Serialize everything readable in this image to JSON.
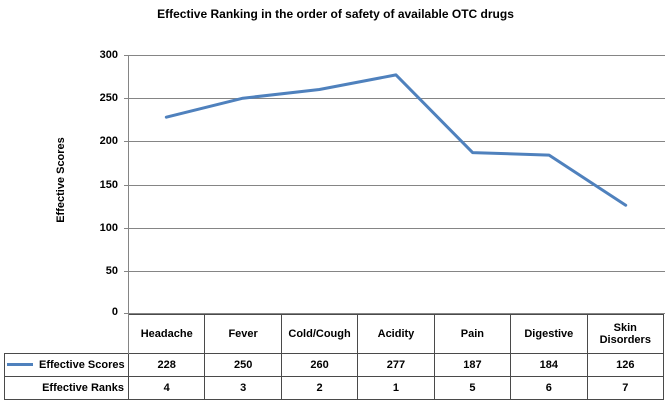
{
  "chart": {
    "title": "Effective Ranking in the order of safety of available OTC drugs"
  },
  "y_axis": {
    "label": "Effective Scores",
    "ticks": [
      "300",
      "250",
      "200",
      "150",
      "100",
      "50",
      "0"
    ]
  },
  "chart_data": {
    "type": "line",
    "title": "Effective Ranking in the order of safety of available OTC drugs",
    "categories": [
      "Headache",
      "Fever",
      "Cold/Cough",
      "Acidity",
      "Pain",
      "Digestive",
      "Skin Disorders"
    ],
    "series": [
      {
        "name": "Effective Scores",
        "values": [
          228,
          250,
          260,
          277,
          187,
          184,
          126
        ],
        "color": "#4F81BD",
        "drawn_as_line": true
      },
      {
        "name": "Effective Ranks",
        "values": [
          4,
          3,
          2,
          1,
          5,
          6,
          7
        ],
        "drawn_as_line": false
      }
    ],
    "ylabel": "Effective Scores",
    "xlabel": "",
    "ylim": [
      0,
      300
    ],
    "ytick_step": 50,
    "grid": true,
    "legend_position": "left-of-data-table"
  },
  "colors": {
    "series_line": "#4F81BD",
    "gridline": "#858585",
    "table_border": "#4A4A4A",
    "text": "#000000",
    "background": "#FFFFFF"
  }
}
